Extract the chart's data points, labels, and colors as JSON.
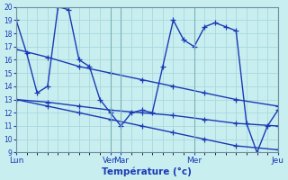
{
  "title": "Température (°c)",
  "ylim": [
    9,
    20
  ],
  "yticks": [
    9,
    10,
    11,
    12,
    13,
    14,
    15,
    16,
    17,
    18,
    19,
    20
  ],
  "bg_color": "#c8eef0",
  "grid_color": "#a8d8dc",
  "line_color": "#1a3ab5",
  "line_width": 1.0,
  "marker": "+",
  "marker_size": 4,
  "xtick_labels": [
    "Lun",
    "Ven",
    "Mar",
    "Mer",
    "Jeu"
  ],
  "series": [
    {
      "x": [
        0,
        1,
        2,
        3,
        4,
        5,
        6,
        7,
        8,
        9,
        10,
        11,
        12,
        13,
        14,
        15,
        16,
        17,
        18,
        19,
        20,
        21,
        22,
        23,
        24,
        25
      ],
      "y": [
        19,
        16.5,
        13.5,
        14.0,
        20.0,
        19.8,
        16.0,
        15.5,
        13.0,
        12.0,
        11.0,
        12.0,
        12.2,
        12.0,
        15.5,
        19.0,
        17.5,
        17.0,
        18.5,
        18.8,
        18.5,
        18.2,
        11.2,
        9.0,
        11.0,
        12.2
      ]
    },
    {
      "x": [
        0,
        3,
        6,
        9,
        12,
        15,
        18,
        21,
        25
      ],
      "y": [
        16.8,
        16.2,
        15.5,
        15.0,
        14.5,
        14.0,
        13.5,
        13.0,
        12.5
      ]
    },
    {
      "x": [
        0,
        3,
        6,
        9,
        12,
        15,
        18,
        21,
        25
      ],
      "y": [
        13.0,
        12.8,
        12.5,
        12.2,
        12.0,
        11.8,
        11.5,
        11.2,
        11.0
      ]
    },
    {
      "x": [
        0,
        3,
        6,
        9,
        12,
        15,
        18,
        21,
        25
      ],
      "y": [
        13.0,
        12.5,
        12.0,
        11.5,
        11.0,
        10.5,
        10.0,
        9.5,
        9.2
      ]
    }
  ],
  "xtick_x": [
    0,
    9,
    10,
    17,
    25
  ],
  "total_x": 25,
  "vline_x": [
    0,
    9,
    10,
    17,
    25
  ]
}
